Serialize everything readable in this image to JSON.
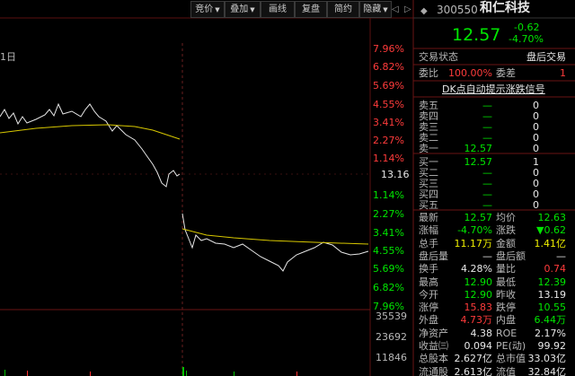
{
  "toolbar": [
    "竞价",
    "叠加",
    "画线",
    "复盘",
    "简约",
    "隐藏"
  ],
  "chart": {
    "date_label": "1日",
    "price_axis": [
      "7.96%",
      "6.82%",
      "5.69%",
      "4.55%",
      "3.41%",
      "2.27%",
      "1.14%",
      "13.16",
      "1.14%",
      "2.27%",
      "3.41%",
      "4.55%",
      "5.69%",
      "6.82%",
      "7.96%"
    ],
    "volume_axis": [
      "35539",
      "23692",
      "11846"
    ]
  },
  "quote_header": {
    "code": "300550",
    "name": "和仁科技",
    "price": "12.57",
    "change": "-0.62",
    "change_pct": "-4.70%"
  },
  "status": {
    "label": "交易状态",
    "value": "盘后交易"
  },
  "commission": [
    "委比",
    "100.00%",
    "委差",
    "1"
  ],
  "signal_link": "DK点自动提示涨跌信号",
  "order_book": {
    "sell": [
      [
        "卖五",
        "—",
        "0"
      ],
      [
        "卖四",
        "—",
        "0"
      ],
      [
        "卖三",
        "—",
        "0"
      ],
      [
        "卖二",
        "—",
        "0"
      ],
      [
        "卖一",
        "12.57",
        "0"
      ]
    ],
    "buy": [
      [
        "买一",
        "12.57",
        "1"
      ],
      [
        "买二",
        "—",
        "0"
      ],
      [
        "买三",
        "—",
        "0"
      ],
      [
        "买四",
        "—",
        "0"
      ],
      [
        "买五",
        "—",
        "0"
      ]
    ]
  },
  "quote_rows": [
    [
      "最新",
      "12.57",
      "均价",
      "12.63"
    ],
    [
      "涨幅",
      "-4.70%",
      "涨跌",
      "▼0.62"
    ],
    [
      "总手",
      "11.17万",
      "金额",
      "1.41亿"
    ],
    [
      "盘后量",
      "—",
      "盘后额",
      "—"
    ],
    [
      "换手",
      "4.28%",
      "量比",
      "0.74"
    ],
    [
      "最高",
      "12.90",
      "最低",
      "12.39"
    ],
    [
      "今开",
      "12.90",
      "昨收",
      "13.19"
    ],
    [
      "涨停",
      "15.83",
      "跌停",
      "10.55"
    ],
    [
      "外盘",
      "4.73万",
      "内盘",
      "6.44万"
    ],
    [
      "净资产",
      "4.38",
      "ROE",
      "2.17%"
    ],
    [
      "收益㈢",
      "0.094",
      "PE(动)",
      "99.92"
    ],
    [
      "总股本",
      "2.627亿",
      "总市值",
      "33.03亿"
    ],
    [
      "流通股",
      "2.613亿",
      "流值",
      "32.84亿"
    ]
  ]
}
